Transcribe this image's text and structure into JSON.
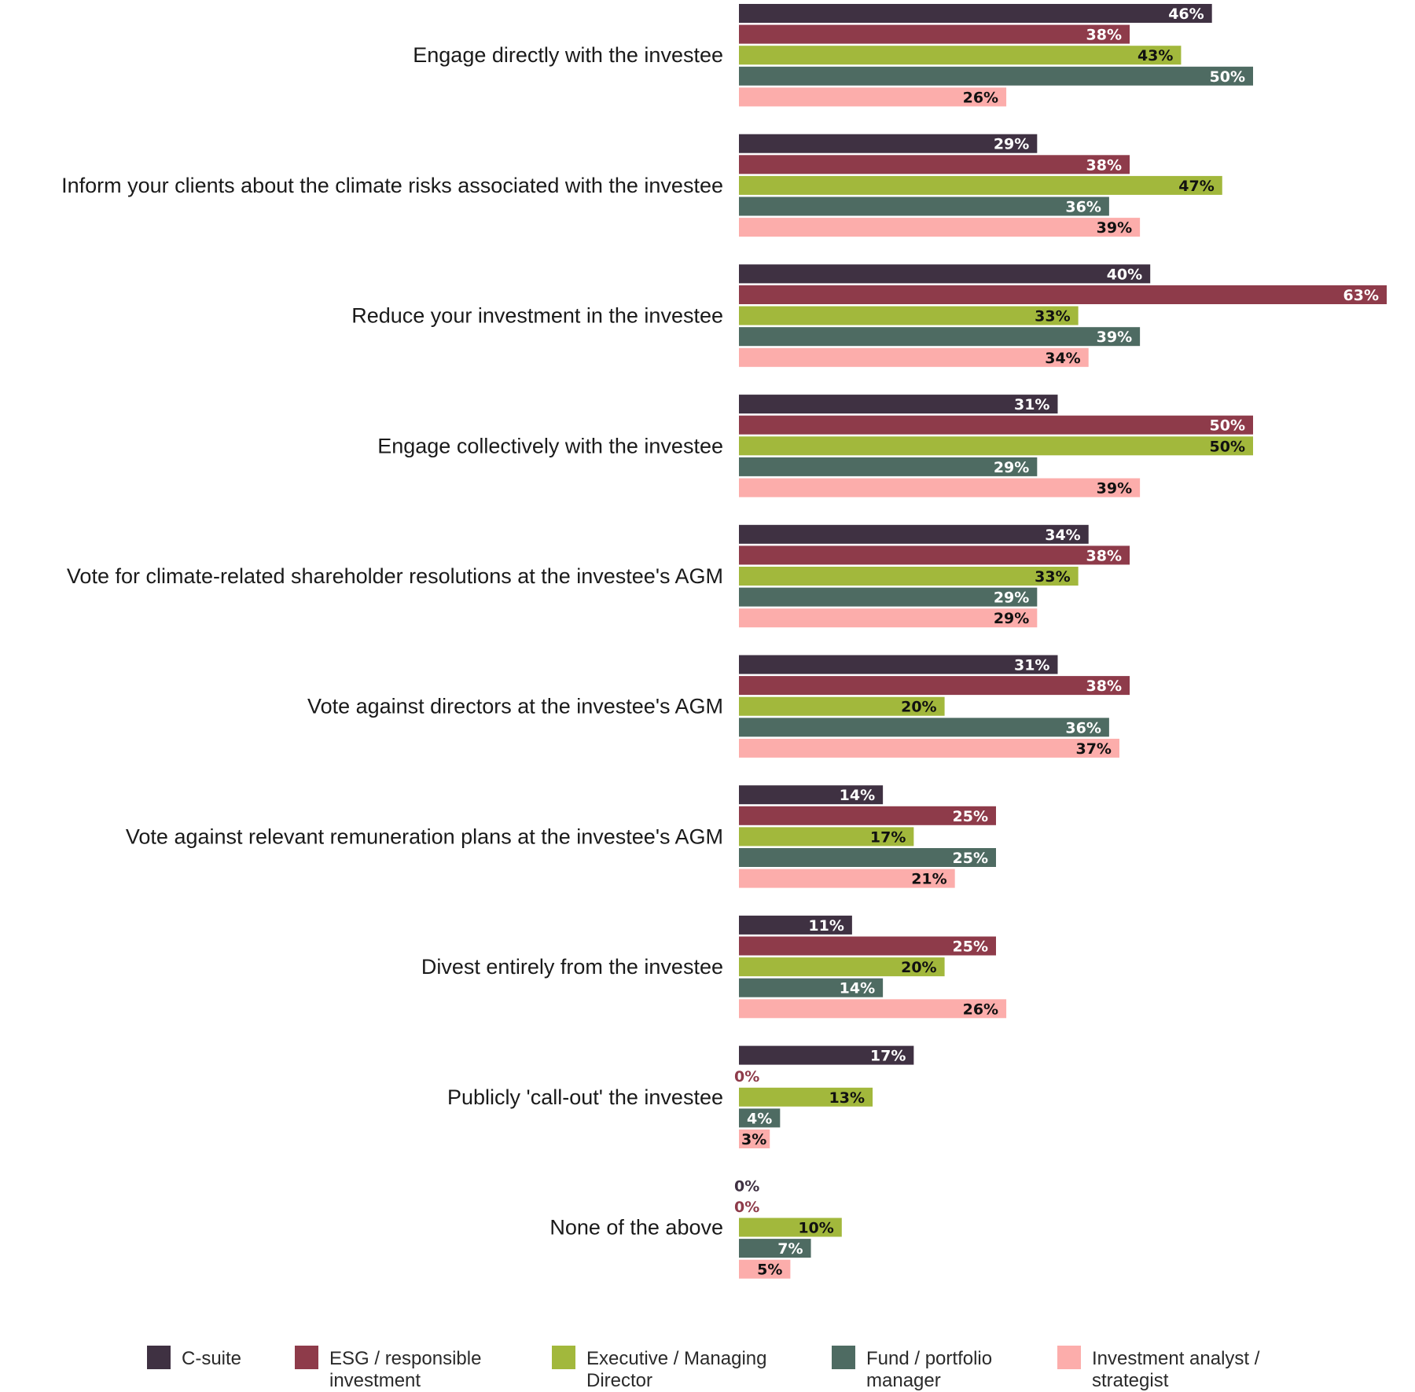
{
  "chart_data": {
    "type": "bar",
    "orientation": "horizontal",
    "title": "",
    "xlabel": "",
    "ylabel": "",
    "xlim": [
      0,
      63
    ],
    "grid": false,
    "legend_position": "bottom",
    "categories": [
      "Engage directly with the investee",
      "Inform your clients about the climate risks associated with the investee",
      "Reduce your investment in the investee",
      "Engage collectively with the investee",
      "Vote for climate-related shareholder resolutions at the investee's AGM",
      "Vote against directors at the investee's AGM",
      "Vote against relevant remuneration plans at the investee's AGM",
      "Divest entirely from the investee",
      "Publicly 'call-out' the investee",
      "None of the above"
    ],
    "series": [
      {
        "name": "C-suite",
        "legend_lines": [
          "C-suite"
        ],
        "color": "#3f3142",
        "label_color": "#ffffff",
        "values": [
          46,
          29,
          40,
          31,
          34,
          31,
          14,
          11,
          17,
          0
        ],
        "labels": [
          "46%",
          "29%",
          "40%",
          "31%",
          "34%",
          "31%",
          "14%",
          "11%",
          "17%",
          "0%"
        ]
      },
      {
        "name": "ESG / responsible investment",
        "legend_lines": [
          "ESG / responsible",
          "investment"
        ],
        "color": "#8e3b4a",
        "label_color": "#ffffff",
        "values": [
          38,
          38,
          63,
          50,
          38,
          38,
          25,
          25,
          0,
          0
        ],
        "labels": [
          "38%",
          "38%",
          "63%",
          "50%",
          "38%",
          "38%",
          "25%",
          "25%",
          "0%",
          "0%"
        ]
      },
      {
        "name": "Executive / Managing Director",
        "legend_lines": [
          "Executive / Managing",
          "Director"
        ],
        "color": "#a2b83c",
        "label_color": "#111111",
        "values": [
          43,
          47,
          33,
          50,
          33,
          20,
          17,
          20,
          13,
          10
        ],
        "labels": [
          "43%",
          "47%",
          "33%",
          "50%",
          "33%",
          "20%",
          "17%",
          "20%",
          "13%",
          "10%"
        ]
      },
      {
        "name": "Fund / portfolio manager",
        "legend_lines": [
          "Fund / portfolio",
          "manager"
        ],
        "color": "#4e6b62",
        "label_color": "#ffffff",
        "values": [
          50,
          36,
          39,
          29,
          29,
          36,
          25,
          14,
          4,
          7
        ],
        "labels": [
          "50%",
          "36%",
          "39%",
          "29%",
          "29%",
          "36%",
          "25%",
          "14%",
          "4%",
          "7%"
        ]
      },
      {
        "name": "Investment analyst / strategist",
        "legend_lines": [
          "Investment analyst /",
          "strategist"
        ],
        "color": "#fcadab",
        "label_color": "#111111",
        "values": [
          26,
          39,
          34,
          39,
          29,
          37,
          21,
          26,
          3,
          5
        ],
        "labels": [
          "26%",
          "39%",
          "34%",
          "39%",
          "29%",
          "37%",
          "21%",
          "26%",
          "3%",
          "5%"
        ]
      }
    ]
  }
}
